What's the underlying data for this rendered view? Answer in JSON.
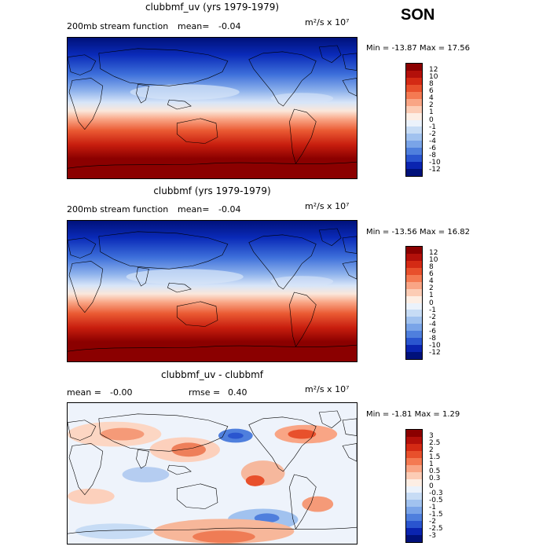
{
  "season": "SON",
  "panels": [
    {
      "title": "clubbmf_uv (yrs 1979-1979)",
      "left_label": "200mb stream function",
      "mean_label": "mean=",
      "mean_value": "-0.04",
      "rmse_label": "",
      "rmse_value": "",
      "units": "m²/s x 10⁷",
      "min_label": "Min =",
      "min_value": "-13.87",
      "max_label": "Max =",
      "max_value": "17.56",
      "colorbar_ticks": [
        "12",
        "10",
        "8",
        "6",
        "4",
        "2",
        "1",
        "0",
        "-1",
        "-2",
        "-4",
        "-6",
        "-8",
        "-10",
        "-12"
      ],
      "colorbar_colors": [
        "#8b0000",
        "#b3100a",
        "#d42a14",
        "#e8502c",
        "#f47a52",
        "#f9a585",
        "#fcccb5",
        "#fdeee4",
        "#ebf2fb",
        "#c7dcf5",
        "#a1c2ef",
        "#7aa4e8",
        "#4f7fdd",
        "#2a55cf",
        "#0a24b0",
        "#00117a"
      ]
    },
    {
      "title": "clubbmf (yrs 1979-1979)",
      "left_label": "200mb stream function",
      "mean_label": "mean=",
      "mean_value": "-0.04",
      "rmse_label": "",
      "rmse_value": "",
      "units": "m²/s x 10⁷",
      "min_label": "Min =",
      "min_value": "-13.56",
      "max_label": "Max =",
      "max_value": "16.82",
      "colorbar_ticks": [
        "12",
        "10",
        "8",
        "6",
        "4",
        "2",
        "1",
        "0",
        "-1",
        "-2",
        "-4",
        "-6",
        "-8",
        "-10",
        "-12"
      ],
      "colorbar_colors": [
        "#8b0000",
        "#b3100a",
        "#d42a14",
        "#e8502c",
        "#f47a52",
        "#f9a585",
        "#fcccb5",
        "#fdeee4",
        "#ebf2fb",
        "#c7dcf5",
        "#a1c2ef",
        "#7aa4e8",
        "#4f7fdd",
        "#2a55cf",
        "#0a24b0",
        "#00117a"
      ]
    },
    {
      "title": "clubbmf_uv - clubbmf",
      "left_label": "",
      "mean_label": "mean =",
      "mean_value": "-0.00",
      "rmse_label": "rmse =",
      "rmse_value": "0.40",
      "units": "m²/s x 10⁷",
      "min_label": "Min =",
      "min_value": "-1.81",
      "max_label": "Max =",
      "max_value": "1.29",
      "colorbar_ticks": [
        "3",
        "2.5",
        "2",
        "1.5",
        "1",
        "0.5",
        "0.3",
        "0",
        "-0.3",
        "-0.5",
        "-1",
        "-1.5",
        "-2",
        "-2.5",
        "-3"
      ],
      "colorbar_colors": [
        "#8b0000",
        "#b3100a",
        "#d42a14",
        "#e8502c",
        "#f47a52",
        "#f9a585",
        "#fcccb5",
        "#fdeee4",
        "#ebf2fb",
        "#c7dcf5",
        "#a1c2ef",
        "#7aa4e8",
        "#4f7fdd",
        "#2a55cf",
        "#0a24b0",
        "#00117a"
      ]
    }
  ]
}
